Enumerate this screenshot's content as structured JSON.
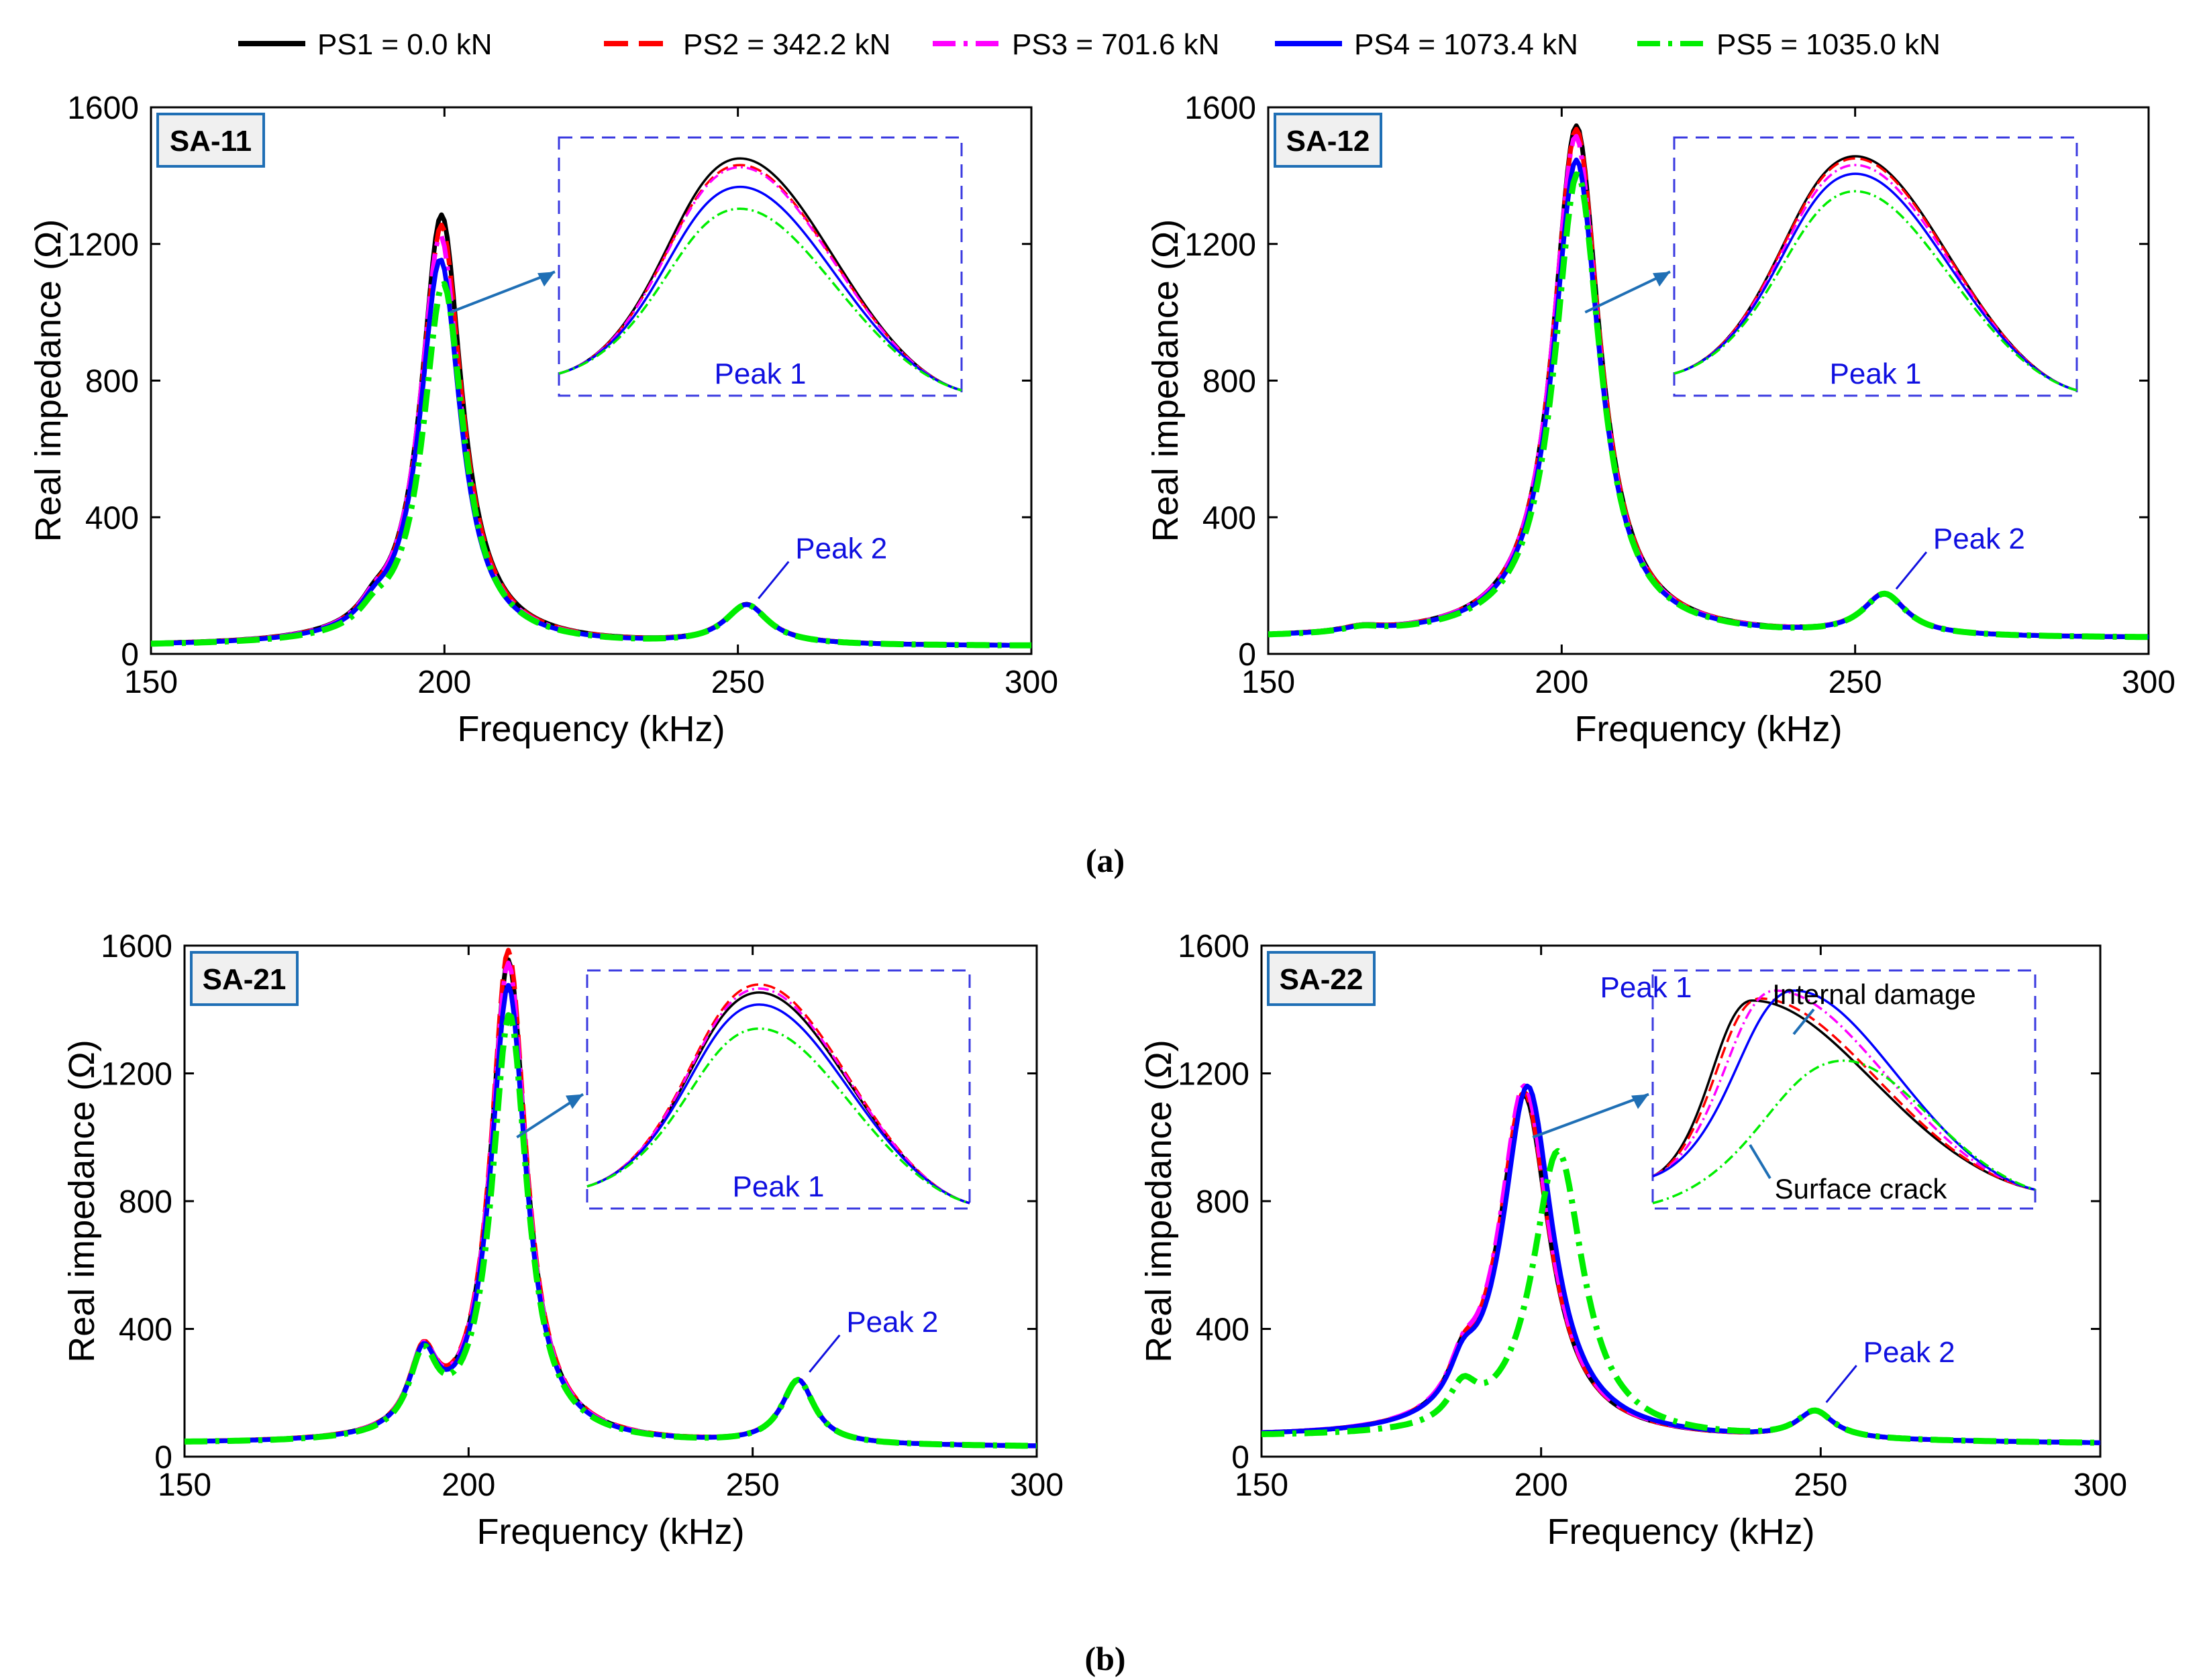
{
  "legend": [
    {
      "label": "PS1 = 0.0 kN",
      "color": "#000000",
      "dash": "solid"
    },
    {
      "label": "PS2 = 342.2 kN",
      "color": "#ff0000",
      "dash": "dash"
    },
    {
      "label": "PS3 = 701.6 kN",
      "color": "#ff00ff",
      "dash": "dashdot"
    },
    {
      "label": "PS4 = 1073.4 kN",
      "color": "#0000ff",
      "dash": "solid"
    },
    {
      "label": "PS5 = 1035.0 kN",
      "color": "#00ee00",
      "dash": "dashdot"
    }
  ],
  "captions": {
    "a": "(a)",
    "b": "(b)"
  },
  "chart_data": [
    {
      "type": "line",
      "title": "SA-11",
      "xlabel": "Frequency (kHz)",
      "ylabel": "Real impedance (Ω)",
      "xlim": [
        150,
        300
      ],
      "ylim": [
        0,
        1600
      ],
      "xticks": [
        150,
        200,
        250,
        300
      ],
      "yticks": [
        0,
        400,
        800,
        1200,
        1600
      ],
      "peak1": {
        "f": 199.5,
        "w": 4.2,
        "amps": [
          1260,
          1230,
          1200,
          1130,
          1060
        ],
        "shifts": [
          0,
          0,
          -0.2,
          -0.2,
          0.3
        ]
      },
      "peak2": {
        "f": 251.5,
        "w": 4.5,
        "amp": 115
      },
      "shoulder": {
        "f": 188,
        "w": 3,
        "amp": 40
      },
      "base": [
        22,
        22
      ],
      "inset": {
        "label": "Peak 1",
        "top": [
          1475,
          1460,
          1455,
          1410,
          1360
        ]
      },
      "annotations": [
        "Peak 1",
        "Peak 2"
      ]
    },
    {
      "type": "line",
      "title": "SA-12",
      "xlabel": "Frequency (kHz)",
      "ylabel": "Real impedance (Ω)",
      "xlim": [
        150,
        300
      ],
      "ylim": [
        0,
        1600
      ],
      "xticks": [
        150,
        200,
        250,
        300
      ],
      "yticks": [
        0,
        400,
        800,
        1200,
        1600
      ],
      "peak1": {
        "f": 202.5,
        "w": 4.8,
        "amps": [
          1500,
          1490,
          1470,
          1400,
          1360
        ],
        "shifts": [
          0,
          0,
          -0.1,
          0,
          0.2
        ]
      },
      "peak2": {
        "f": 255,
        "w": 4.5,
        "amp": 120
      },
      "shoulder": {
        "f": 166,
        "w": 4,
        "amp": 15
      },
      "base": [
        45,
        45
      ],
      "inset": {
        "label": "Peak 1",
        "top": [
          1480,
          1475,
          1460,
          1440,
          1400
        ]
      },
      "annotations": [
        "Peak 1",
        "Peak 2"
      ]
    },
    {
      "type": "line",
      "title": "SA-21",
      "xlabel": "Frequency (kHz)",
      "ylabel": "Real impedance (Ω)",
      "xlim": [
        150,
        300
      ],
      "ylim": [
        0,
        1600
      ],
      "xticks": [
        150,
        200,
        250,
        300
      ],
      "yticks": [
        0,
        400,
        800,
        1200,
        1600
      ],
      "peak1": {
        "f": 207,
        "w": 3.8,
        "amps": [
          1510,
          1540,
          1500,
          1430,
          1340
        ],
        "shifts": [
          0,
          0,
          0,
          0,
          0.2
        ]
      },
      "peak2": {
        "f": 258,
        "w": 3.5,
        "amp": 200
      },
      "shoulder": {
        "f": 192,
        "w": 3,
        "amp": 230
      },
      "base": [
        40,
        30
      ],
      "inset": {
        "label": "Peak 1",
        "top": [
          1470,
          1490,
          1480,
          1440,
          1380
        ]
      },
      "annotations": [
        "Peak 1",
        "Peak 2"
      ]
    },
    {
      "type": "line",
      "title": "SA-22",
      "xlabel": "Frequency (kHz)",
      "ylabel": "Real impedance (Ω)",
      "xlim": [
        150,
        300
      ],
      "ylim": [
        0,
        1600
      ],
      "xticks": [
        150,
        200,
        250,
        300
      ],
      "yticks": [
        0,
        400,
        800,
        1200,
        1600
      ],
      "peak1": {
        "f": 197,
        "w": 5.5,
        "amps": [
          1070,
          1080,
          1100,
          1100,
          900
        ],
        "shifts": [
          0,
          0,
          0,
          0.6,
          6.0
        ]
      },
      "peak2": {
        "f": 249,
        "w": 4,
        "amp": 85
      },
      "shoulder": {
        "f": 186,
        "w": 3,
        "amp": 110
      },
      "base": [
        60,
        40
      ],
      "inset": {
        "label": "Peak 1",
        "top": [
          1450,
          1455,
          1475,
          1475,
          1300
        ]
      },
      "annotations": [
        "Peak 1",
        "Peak 2",
        "Internal damage",
        "Surface crack"
      ]
    }
  ]
}
